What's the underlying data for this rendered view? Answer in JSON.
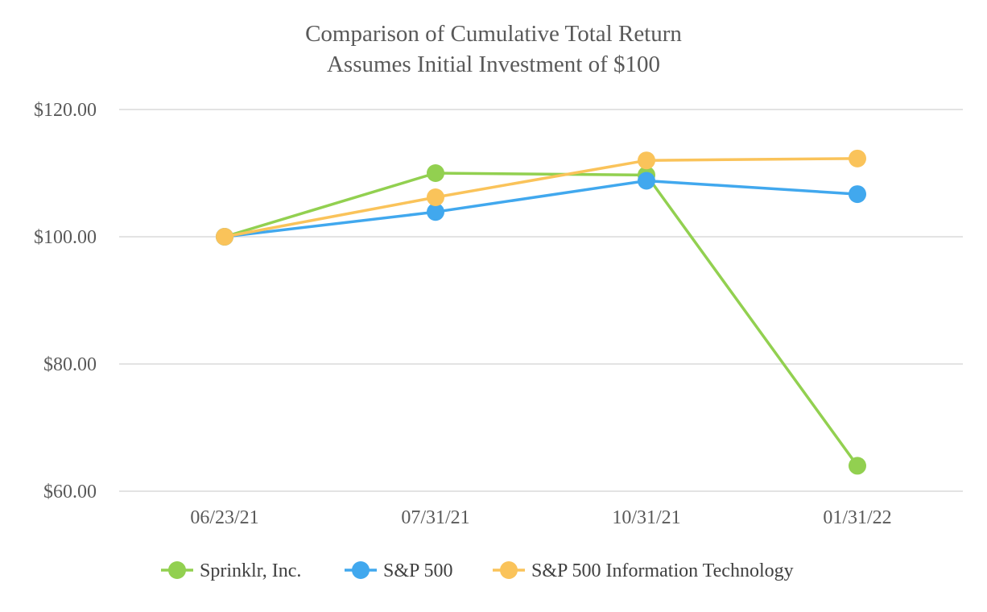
{
  "chart_data": {
    "type": "line",
    "title_lines": [
      "Comparison of Cumulative Total Return",
      "Assumes Initial Investment of $100"
    ],
    "xlabel": "",
    "ylabel": "",
    "categories": [
      "06/23/21",
      "07/31/21",
      "10/31/21",
      "01/31/22"
    ],
    "ylim": [
      60,
      120
    ],
    "yticks": [
      60,
      80,
      100,
      120
    ],
    "ytick_labels": [
      "$60.00",
      "$80.00",
      "$100.00",
      "$120.00"
    ],
    "grid": true,
    "legend_position": "bottom",
    "series": [
      {
        "name": "Sprinklr, Inc.",
        "color": "#92d050",
        "values": [
          100.0,
          110.0,
          109.7,
          64.0
        ]
      },
      {
        "name": "S&P 500",
        "color": "#41a8ee",
        "values": [
          100.0,
          103.9,
          108.8,
          106.7
        ]
      },
      {
        "name": "S&P 500 Information Technology",
        "color": "#fac35a",
        "values": [
          100.0,
          106.2,
          112.0,
          112.3
        ]
      }
    ]
  }
}
